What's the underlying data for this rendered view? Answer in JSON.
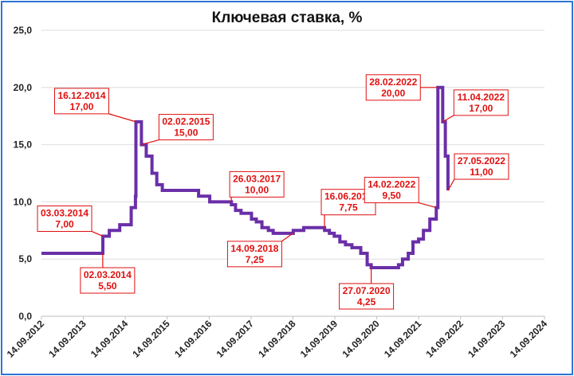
{
  "chart_data": {
    "type": "line",
    "title": "Ключевая ставка, %",
    "xlabel": "",
    "ylabel": "",
    "ylim": [
      0,
      25
    ],
    "y_ticks": [
      "0,0",
      "5,0",
      "10,0",
      "15,0",
      "20,0",
      "25,0"
    ],
    "x_ticks": [
      "14.09.2012",
      "14.09.2013",
      "14.09.2014",
      "14.09.2015",
      "14.09.2016",
      "14.09.2017",
      "14.09.2018",
      "14.09.2019",
      "14.09.2020",
      "14.09.2021",
      "14.09.2022",
      "14.09.2023",
      "14.09.2024"
    ],
    "grid": "horizontal",
    "line_color": "#6a2fa8",
    "annotation_color": "#e01010",
    "series": [
      {
        "steps": [
          [
            "13.09.2013",
            5.5
          ],
          [
            "03.03.2014",
            7.0
          ],
          [
            "28.04.2014",
            7.5
          ],
          [
            "28.07.2014",
            8.0
          ],
          [
            "05.11.2014",
            9.5
          ],
          [
            "12.12.2014",
            10.5
          ],
          [
            "16.12.2014",
            17.0
          ],
          [
            "02.02.2015",
            15.0
          ],
          [
            "16.03.2015",
            14.0
          ],
          [
            "05.05.2015",
            12.5
          ],
          [
            "16.06.2015",
            11.5
          ],
          [
            "03.08.2015",
            11.0
          ],
          [
            "14.06.2016",
            10.5
          ],
          [
            "19.09.2016",
            10.0
          ],
          [
            "27.03.2017",
            9.75
          ],
          [
            "02.05.2017",
            9.25
          ],
          [
            "19.06.2017",
            9.0
          ],
          [
            "18.09.2017",
            8.5
          ],
          [
            "30.10.2017",
            8.25
          ],
          [
            "18.12.2017",
            7.75
          ],
          [
            "12.02.2018",
            7.5
          ],
          [
            "26.03.2018",
            7.25
          ],
          [
            "17.09.2018",
            7.5
          ],
          [
            "17.12.2018",
            7.75
          ],
          [
            "17.06.2019",
            7.5
          ],
          [
            "29.07.2019",
            7.25
          ],
          [
            "09.09.2019",
            7.0
          ],
          [
            "28.10.2019",
            6.5
          ],
          [
            "16.12.2019",
            6.25
          ],
          [
            "10.02.2020",
            6.0
          ],
          [
            "27.04.2020",
            5.5
          ],
          [
            "22.06.2020",
            4.5
          ],
          [
            "27.07.2020",
            4.25
          ],
          [
            "22.03.2021",
            4.5
          ],
          [
            "26.04.2021",
            5.0
          ],
          [
            "15.06.2021",
            5.5
          ],
          [
            "26.07.2021",
            6.5
          ],
          [
            "13.09.2021",
            6.75
          ],
          [
            "25.10.2021",
            7.5
          ],
          [
            "20.12.2021",
            8.5
          ],
          [
            "14.02.2022",
            9.5
          ],
          [
            "28.02.2022",
            20.0
          ],
          [
            "11.04.2022",
            17.0
          ],
          [
            "04.05.2022",
            14.0
          ],
          [
            "27.05.2022",
            11.0
          ]
        ]
      }
    ],
    "annotations": [
      {
        "date": "03.03.2014",
        "value_label": "7,00",
        "x": "03.03.2014",
        "y": 7.0,
        "anchor": "left"
      },
      {
        "date": "02.03.2014",
        "value_label": "5,50",
        "x": "02.03.2014",
        "y": 5.5,
        "anchor": "below"
      },
      {
        "date": "16.12.2014",
        "value_label": "17,00",
        "x": "16.12.2014",
        "y": 17.0,
        "anchor": "left"
      },
      {
        "date": "02.02.2015",
        "value_label": "15,00",
        "x": "02.02.2015",
        "y": 15.0,
        "anchor": "right"
      },
      {
        "date": "26.03.2017",
        "value_label": "10,00",
        "x": "26.03.2017",
        "y": 10.0,
        "anchor": "right"
      },
      {
        "date": "14.09.2018",
        "value_label": "7,25",
        "x": "14.09.2018",
        "y": 7.25,
        "anchor": "below"
      },
      {
        "date": "16.06.2019",
        "value_label": "7,75",
        "x": "16.06.2019",
        "y": 7.75,
        "anchor": "right"
      },
      {
        "date": "27.07.2020",
        "value_label": "4,25",
        "x": "27.07.2020",
        "y": 4.25,
        "anchor": "below"
      },
      {
        "date": "14.02.2022",
        "value_label": "9,50",
        "x": "14.02.2022",
        "y": 9.5,
        "anchor": "left"
      },
      {
        "date": "28.02.2022",
        "value_label": "20,00",
        "x": "28.02.2022",
        "y": 20.0,
        "anchor": "left"
      },
      {
        "date": "11.04.2022",
        "value_label": "17,00",
        "x": "11.04.2022",
        "y": 17.0,
        "anchor": "right"
      },
      {
        "date": "27.05.2022",
        "value_label": "11,00",
        "x": "27.05.2022",
        "y": 11.0,
        "anchor": "right"
      }
    ]
  }
}
